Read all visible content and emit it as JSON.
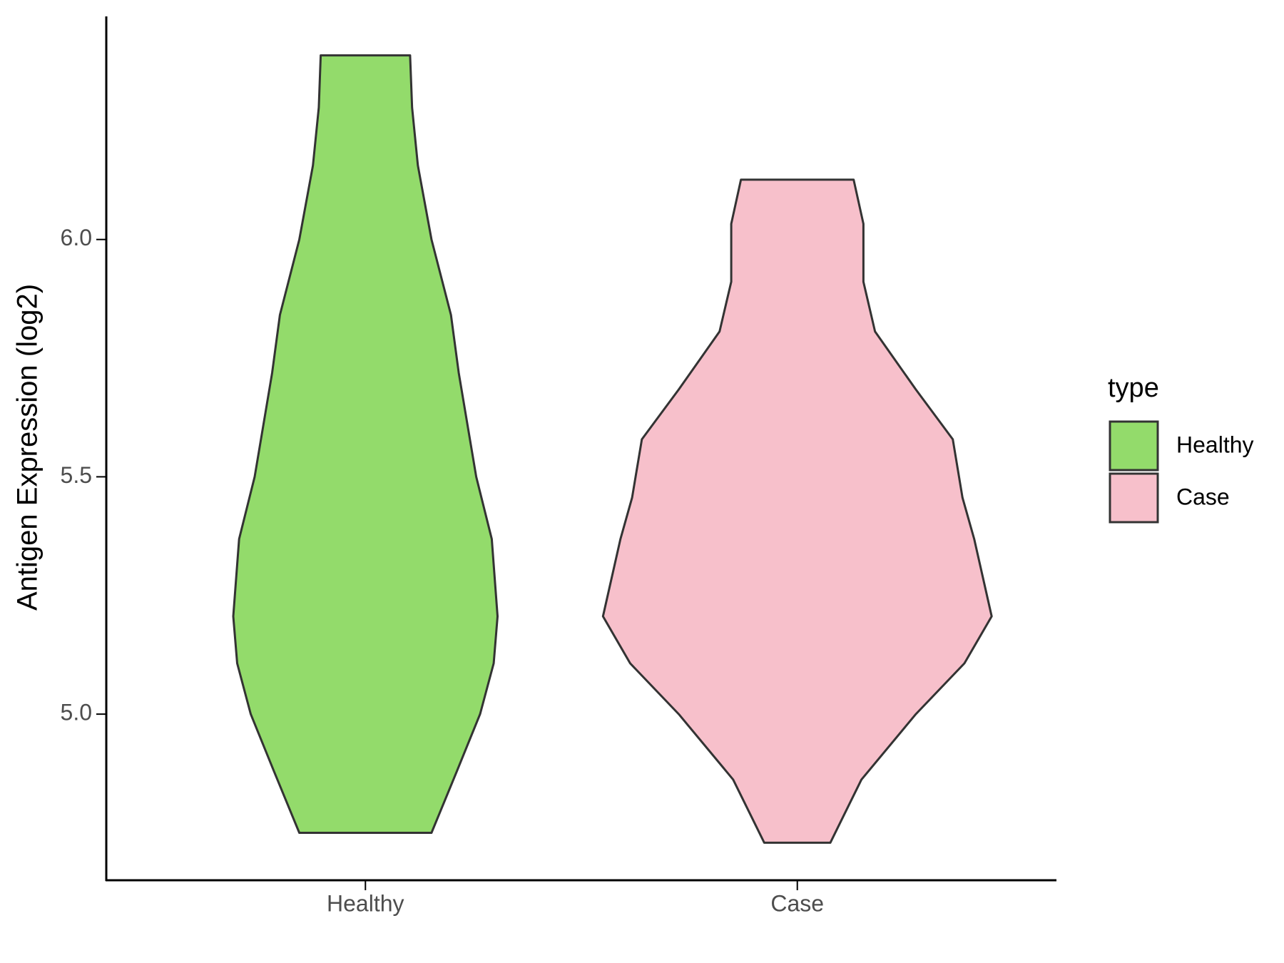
{
  "chart_data": {
    "type": "violin",
    "ylabel": "Antigen Expression (log2)",
    "categories": [
      "Healthy",
      "Case"
    ],
    "legend_title": "type",
    "legend_position": "right",
    "ylim": [
      4.65,
      6.47
    ],
    "yticks": [
      {
        "value": 5,
        "label": "5.0"
      },
      5.5,
      {
        "value": 6,
        "label": "6.0"
      }
    ],
    "series": [
      {
        "name": "Healthy",
        "color": "#93db6b",
        "values": [
          6.388,
          6.278,
          6.156,
          6.0,
          5.841,
          5.719,
          5.5,
          5.369,
          5.206,
          5.107,
          5.0,
          4.879,
          4.75
        ],
        "density": [
          0.23,
          0.24,
          0.27,
          0.34,
          0.44,
          0.48,
          0.57,
          0.65,
          0.68,
          0.66,
          0.59,
          0.47,
          0.34
        ]
      },
      {
        "name": "Case",
        "color": "#f7c0cb",
        "values": [
          6.126,
          6.033,
          5.911,
          5.806,
          5.684,
          5.579,
          5.456,
          5.369,
          5.206,
          5.107,
          5.0,
          4.862,
          4.729
        ],
        "density": [
          0.29,
          0.34,
          0.34,
          0.4,
          0.61,
          0.8,
          0.85,
          0.91,
          1.0,
          0.86,
          0.61,
          0.33,
          0.17
        ]
      }
    ]
  }
}
